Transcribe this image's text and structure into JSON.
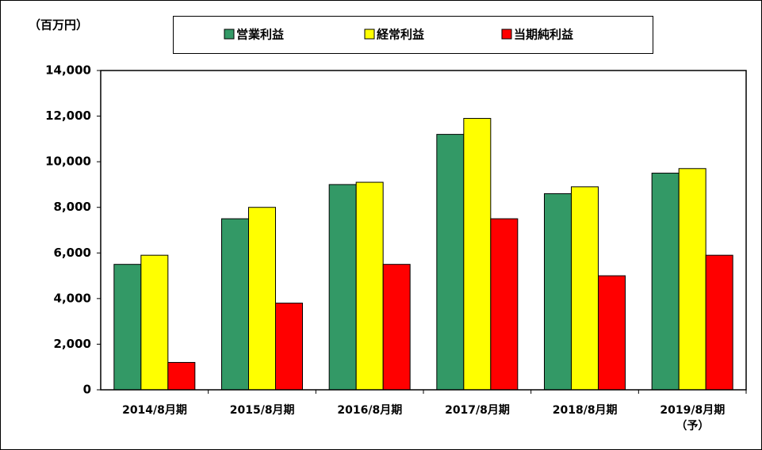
{
  "chart_data": {
    "type": "bar",
    "y_label": "（百万円）",
    "categories": [
      "2014/8月期",
      "2015/8月期",
      "2016/8月期",
      "2017/8月期",
      "2018/8月期",
      "2019/8月期\n（予）"
    ],
    "series": [
      {
        "name": "営業利益",
        "color": "#339966",
        "values": [
          5500,
          7500,
          9000,
          11200,
          8600,
          9500
        ]
      },
      {
        "name": "経常利益",
        "color": "#ffff00",
        "values": [
          5900,
          8000,
          9100,
          11900,
          8900,
          9700
        ]
      },
      {
        "name": "当期純利益",
        "color": "#ff0000",
        "values": [
          1200,
          3800,
          5500,
          7500,
          5000,
          5900
        ]
      }
    ],
    "ylim": [
      0,
      14000
    ],
    "yticks": [
      0,
      {
        "value": 2000,
        "label": "2,000"
      },
      {
        "value": 4000,
        "label": "4,000"
      },
      {
        "value": 6000,
        "label": "6,000"
      },
      {
        "value": 8000,
        "label": "8,000"
      },
      {
        "value": 10000,
        "label": "10,000"
      },
      {
        "value": 12000,
        "label": "12,000"
      },
      {
        "value": 14000,
        "label": "14,000"
      }
    ],
    "legend": "top"
  }
}
